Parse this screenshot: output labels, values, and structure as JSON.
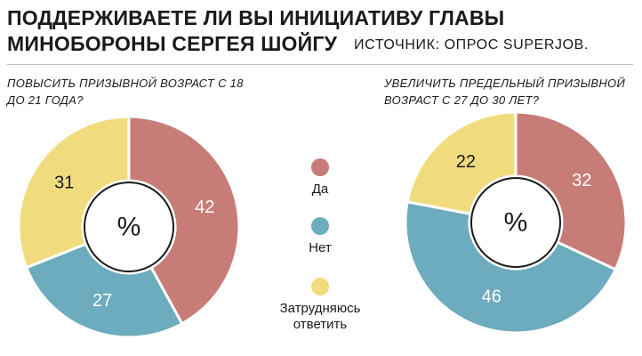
{
  "header": {
    "title_line1": "Поддерживаете ли вы инициативу главы",
    "title_line2": "Минобороны Сергея Шойгу",
    "source": "Источник: опрос SuperJob."
  },
  "colors": {
    "yes": "#c77c78",
    "no": "#6dabbe",
    "undecided": "#f0dc7e"
  },
  "legend": {
    "yes": "Да",
    "no": "Нет",
    "undecided": "Затрудняюсь ответить"
  },
  "chart_data": [
    {
      "type": "pie",
      "title": "Повысить призывной возраст с 18 до 21 года?",
      "center_label": "%",
      "categories": [
        "Да",
        "Нет",
        "Затрудняюсь ответить"
      ],
      "values": [
        42,
        27,
        31
      ]
    },
    {
      "type": "pie",
      "title": "Увеличить предельный призывной возраст с 27 до 30 лет?",
      "center_label": "%",
      "categories": [
        "Да",
        "Нет",
        "Затрудняюсь ответить"
      ],
      "values": [
        32,
        46,
        22
      ]
    }
  ]
}
